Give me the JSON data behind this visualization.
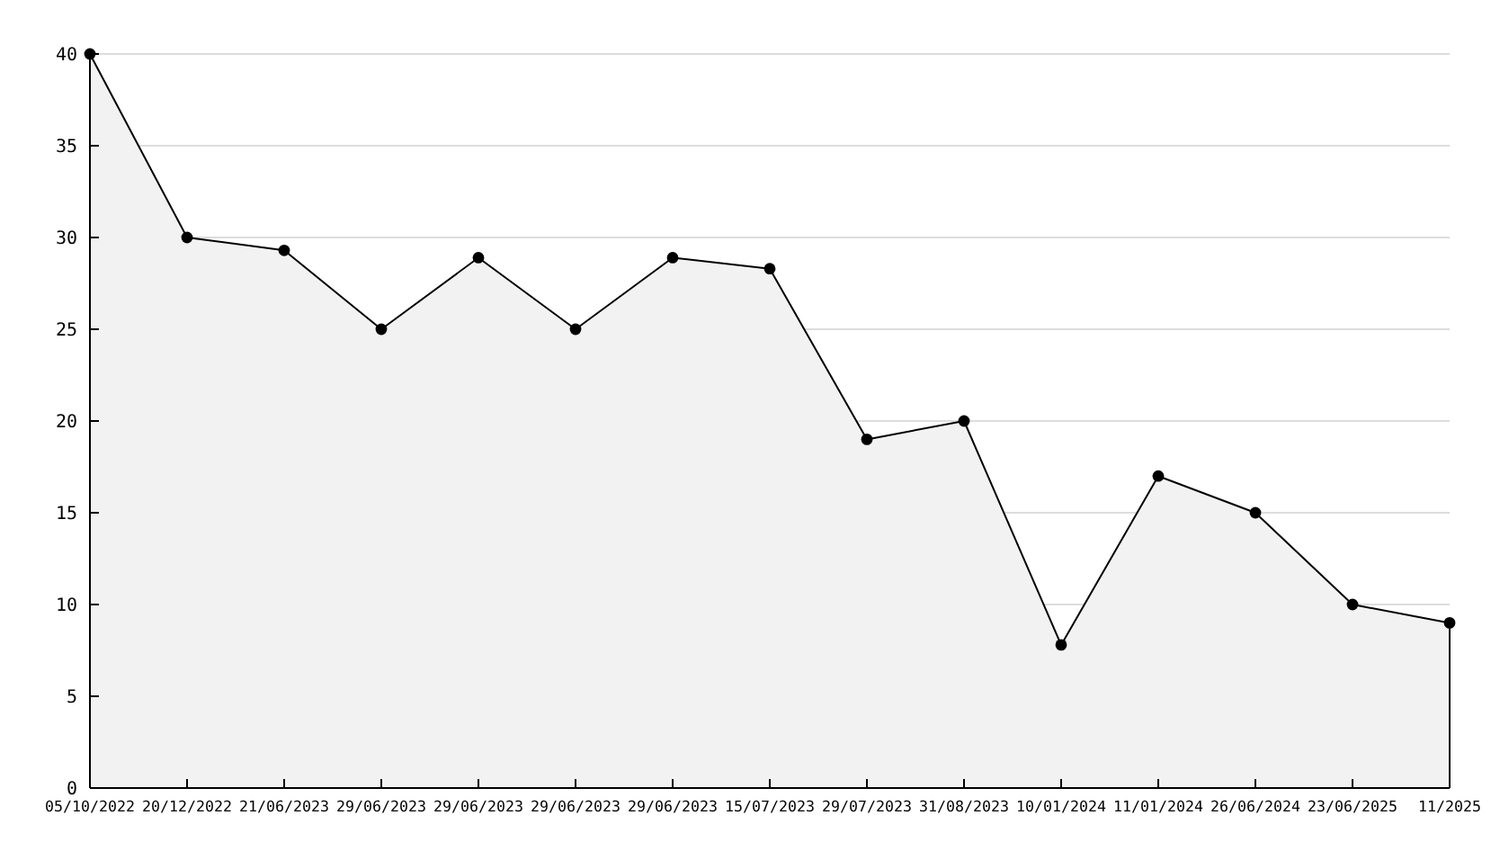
{
  "chart_data": {
    "type": "area",
    "categories": [
      "05/10/2022",
      "20/12/2022",
      "21/06/2023",
      "29/06/2023",
      "29/06/2023",
      "29/06/2023",
      "29/06/2023",
      "15/07/2023",
      "29/07/2023",
      "31/08/2023",
      "10/01/2024",
      "11/01/2024",
      "26/06/2024",
      "23/06/2025",
      "11/2025"
    ],
    "series": [
      {
        "color": "#000000",
        "values": [
          40,
          30,
          29.3,
          25,
          28.9,
          25,
          28.9,
          28.3,
          19,
          20,
          7.8,
          17,
          15,
          10,
          9
        ]
      }
    ],
    "ylim": [
      0,
      40
    ],
    "yticks": [
      0,
      5,
      10,
      15,
      20,
      25,
      30,
      35,
      40
    ],
    "grid": "y",
    "marker": "circle",
    "line_style": "solid"
  }
}
